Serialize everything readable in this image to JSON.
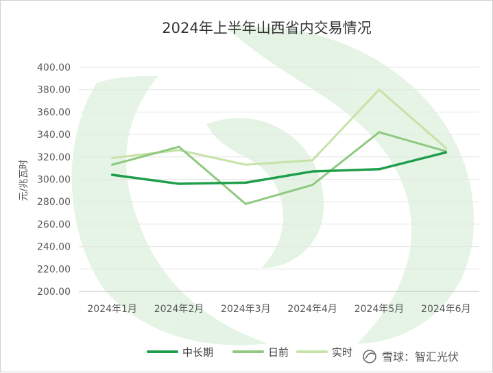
{
  "chart_data": {
    "type": "line",
    "title": "2024年上半年山西省内交易情况",
    "xlabel": "",
    "ylabel": "元/兆瓦时",
    "ylim": [
      200,
      400
    ],
    "ytick_step": 20,
    "ytick_labels": [
      "200.00",
      "220.00",
      "240.00",
      "260.00",
      "280.00",
      "300.00",
      "320.00",
      "340.00",
      "360.00",
      "380.00",
      "400.00"
    ],
    "categories": [
      "2024年1月",
      "2024年2月",
      "2024年3月",
      "2024年4月",
      "2024年5月",
      "2024年6月"
    ],
    "series": [
      {
        "name": "中长期",
        "color": "#1e9e4a",
        "width": 3.5,
        "values": [
          304,
          296,
          297,
          307,
          309,
          324
        ]
      },
      {
        "name": "日前",
        "color": "#8ec97f",
        "width": 3,
        "values": [
          313,
          329,
          278,
          295,
          342,
          325
        ]
      },
      {
        "name": "实时",
        "color": "#c6e2a7",
        "width": 3,
        "values": [
          319,
          326,
          313,
          317,
          380,
          328
        ]
      }
    ],
    "grid": true,
    "legend_position": "bottom"
  },
  "watermark": {
    "brand": "雪球",
    "separator": "：",
    "account": "智汇光伏"
  }
}
